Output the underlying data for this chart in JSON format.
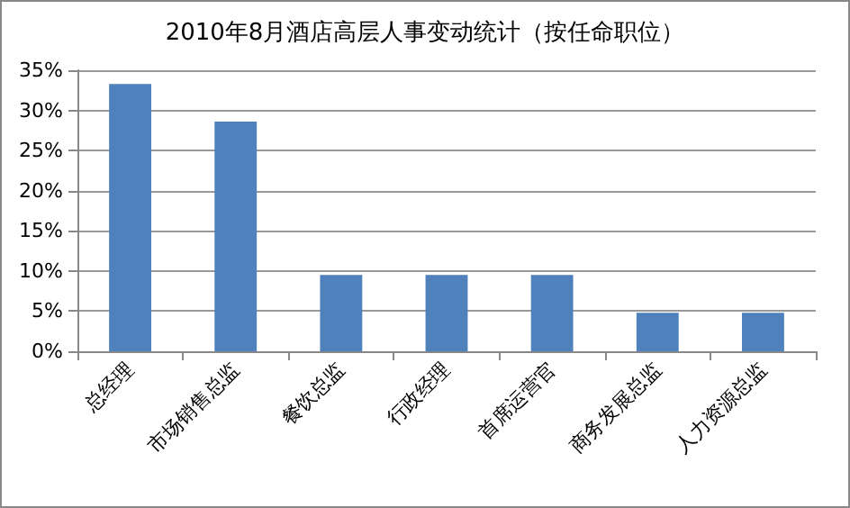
{
  "chart_data": {
    "type": "bar",
    "title": "2010年8月酒店高层人事变动统计（按任命职位）",
    "categories": [
      "总经理",
      "市场销售总监",
      "餐饮总监",
      "行政经理",
      "首席运营官",
      "商务发展总监",
      "人力资源总监"
    ],
    "values": [
      33.3,
      28.6,
      9.5,
      9.5,
      9.5,
      4.8,
      4.8
    ],
    "color": "#4f81bd",
    "ylim": [
      0,
      35
    ],
    "yticks": [
      {
        "value": 0,
        "label": "0%"
      },
      {
        "value": 5,
        "label": "5%"
      },
      {
        "value": 10,
        "label": "10%"
      },
      {
        "value": 15,
        "label": "15%"
      },
      {
        "value": 20,
        "label": "20%"
      },
      {
        "value": 25,
        "label": "25%"
      },
      {
        "value": 30,
        "label": "30%"
      },
      {
        "value": 35,
        "label": "35%"
      }
    ],
    "grid": "y"
  }
}
